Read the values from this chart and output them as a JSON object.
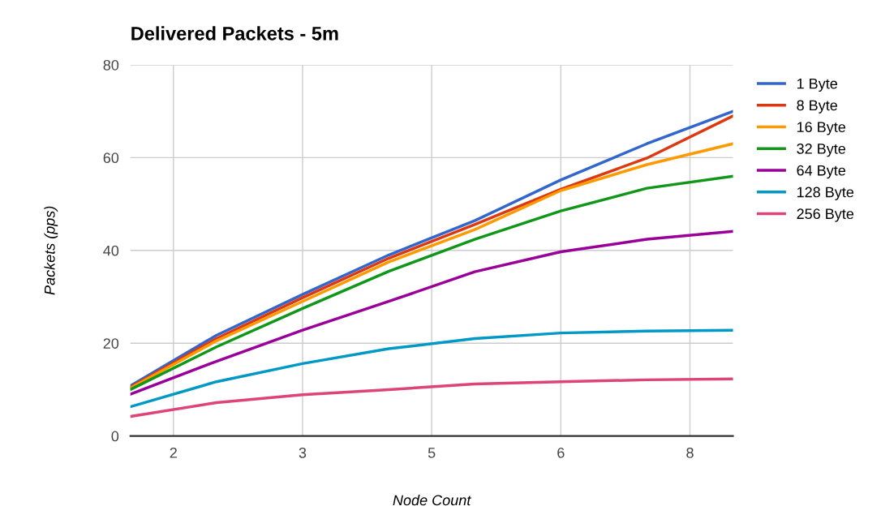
{
  "chart_data": {
    "type": "line",
    "title": "Delivered Packets - 5m",
    "xlabel": "Node Count",
    "ylabel": "Packets (pps)",
    "x": [
      1.5,
      2.5,
      3.5,
      4.5,
      5.5,
      6.5,
      7.5,
      8.5
    ],
    "xlim": [
      1.5,
      8.5
    ],
    "xticks": [
      2,
      {
        "value": 3.5,
        "label": "3"
      },
      5,
      {
        "value": 6.5,
        "label": "6"
      },
      8
    ],
    "ylim": [
      0,
      80
    ],
    "yticks": [
      0,
      20,
      40,
      60,
      80
    ],
    "grid": true,
    "legend": "right",
    "marker": "none",
    "line_style": "solid",
    "series": [
      {
        "name": "1 Byte",
        "color": "#3366cc",
        "values": [
          10.8,
          21.7,
          30.5,
          39,
          46.4,
          55.2,
          63,
          70
        ]
      },
      {
        "name": "8 Byte",
        "color": "#dc3912",
        "values": [
          10.5,
          21,
          29.8,
          38.3,
          45.6,
          53.2,
          59.9,
          69
        ]
      },
      {
        "name": "16 Byte",
        "color": "#ff9900",
        "values": [
          10.3,
          20.5,
          29,
          37.5,
          44.5,
          52.9,
          58.5,
          63
        ]
      },
      {
        "name": "32 Byte",
        "color": "#109618",
        "values": [
          10,
          19.2,
          27.5,
          35.5,
          42.4,
          48.5,
          53.4,
          56
        ]
      },
      {
        "name": "64 Byte",
        "color": "#990099",
        "values": [
          9,
          16.1,
          22.8,
          29,
          35.4,
          39.7,
          42.4,
          44.1
        ]
      },
      {
        "name": "128 Byte",
        "color": "#0099c6",
        "values": [
          6.3,
          11.7,
          15.6,
          18.8,
          21,
          22.2,
          22.6,
          22.8
        ]
      },
      {
        "name": "256 Byte",
        "color": "#dd4477",
        "values": [
          4.2,
          7.2,
          8.9,
          10,
          11.2,
          11.7,
          12.1,
          12.3
        ]
      }
    ]
  }
}
